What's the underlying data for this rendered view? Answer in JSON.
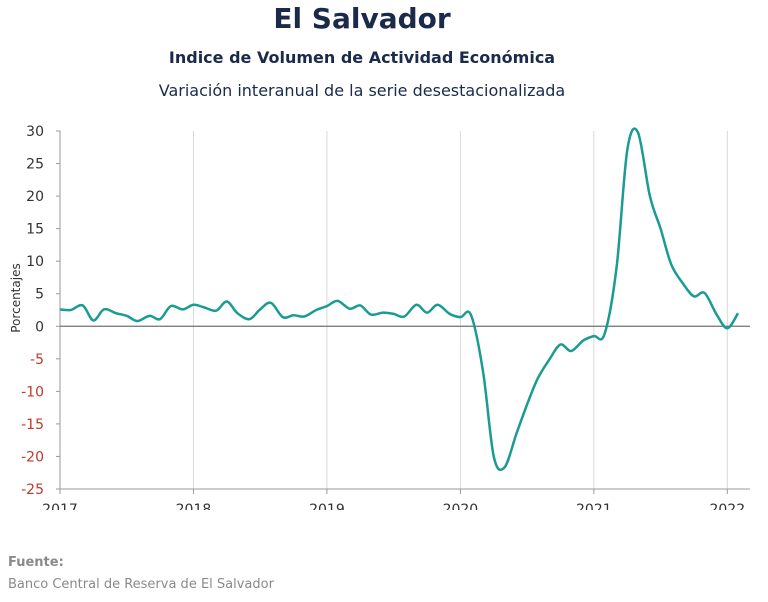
{
  "title": "El Salvador",
  "subtitle": "Indice de Volumen de  Actividad Económica",
  "subtitle2": "Variación interanual de la serie desestacionalizada",
  "source": {
    "label": "Fuente:",
    "text": "Banco Central de Reserva de El Salvador"
  },
  "chart_data": {
    "type": "line",
    "ylabel": "Porcentajes",
    "ylim": [
      -25,
      30
    ],
    "yticks": [
      30,
      25,
      20,
      15,
      10,
      5,
      0,
      -5,
      -10,
      -15,
      -20,
      -25
    ],
    "xlim": [
      2017.0,
      2022.17
    ],
    "xticks": [
      "2017",
      "2018",
      "2019",
      "2020",
      "2021",
      "2022"
    ],
    "grid": "vertical",
    "colors": {
      "line": "#1a9b93",
      "negative_ticks": "#c0392b",
      "zero_line": "#707070"
    },
    "series": [
      {
        "x": [
          2017.0,
          2017.08,
          2017.17,
          2017.25,
          2017.33,
          2017.42,
          2017.5,
          2017.58,
          2017.67,
          2017.75,
          2017.83,
          2017.92,
          2018.0,
          2018.08,
          2018.17,
          2018.25,
          2018.33,
          2018.42,
          2018.5,
          2018.58,
          2018.67,
          2018.75,
          2018.83,
          2018.92,
          2019.0,
          2019.08,
          2019.17,
          2019.25,
          2019.33,
          2019.42,
          2019.5,
          2019.58,
          2019.67,
          2019.75,
          2019.83,
          2019.92,
          2020.0,
          2020.08,
          2020.17,
          2020.25,
          2020.33,
          2020.42,
          2020.5,
          2020.58,
          2020.67,
          2020.75,
          2020.83,
          2020.92,
          2021.0,
          2021.08,
          2021.17,
          2021.25,
          2021.33,
          2021.42,
          2021.5,
          2021.58,
          2021.67,
          2021.75,
          2021.83,
          2021.92,
          2022.0,
          2022.08
        ],
        "y": [
          2.6,
          2.5,
          3.2,
          0.9,
          2.6,
          2.0,
          1.6,
          0.8,
          1.6,
          1.1,
          3.1,
          2.6,
          3.3,
          2.9,
          2.4,
          3.8,
          2.0,
          1.1,
          2.6,
          3.6,
          1.4,
          1.7,
          1.5,
          2.5,
          3.1,
          3.9,
          2.7,
          3.2,
          1.8,
          2.1,
          1.9,
          1.5,
          3.3,
          2.1,
          3.3,
          1.9,
          1.4,
          1.7,
          -7.0,
          -20.0,
          -21.7,
          -16.5,
          -12.0,
          -8.0,
          -5.0,
          -2.8,
          -3.8,
          -2.2,
          -1.5,
          -1.2,
          9.0,
          27.0,
          29.8,
          20.0,
          15.0,
          9.5,
          6.5,
          4.6,
          5.1,
          1.8,
          -0.3,
          2.0
        ]
      }
    ]
  }
}
